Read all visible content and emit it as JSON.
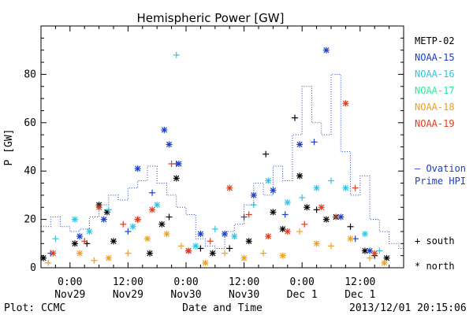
{
  "chart_data": {
    "type": "scatter",
    "title": "Hemispheric Power [GW]",
    "ylabel": "P [GW]",
    "xlabel": "Date and Time",
    "ylim": [
      0,
      100
    ],
    "xlim": [
      "2013-11-28 18:00",
      "2013-12-01 21:00"
    ],
    "y_ticks": [
      0,
      20,
      40,
      60,
      80
    ],
    "x_ticks": [
      {
        "at": "2013-11-29 00:00",
        "line1": "0:00",
        "line2": "Nov29"
      },
      {
        "at": "2013-11-29 12:00",
        "line1": "12:00",
        "line2": "Nov29"
      },
      {
        "at": "2013-11-30 00:00",
        "line1": "0:00",
        "line2": "Nov30"
      },
      {
        "at": "2013-11-30 12:00",
        "line1": "12:00",
        "line2": "Nov30"
      },
      {
        "at": "2013-12-01 00:00",
        "line1": "0:00",
        "line2": "Dec 1"
      },
      {
        "at": "2013-12-01 12:00",
        "line1": "12:00",
        "line2": "Dec 1"
      }
    ],
    "grid": false,
    "legend_position": "right",
    "footer_left": "Plot: CCMC",
    "footer_right": "2013/12/01 20:15:06",
    "marker_legend": [
      {
        "symbol": "+",
        "label": "south"
      },
      {
        "symbol": "*",
        "label": "north"
      }
    ],
    "series": [
      {
        "name": "METP-02",
        "color": "#000000",
        "points": [
          [
            "2013-11-28 18:30",
            4,
            "*"
          ],
          [
            "2013-11-29 01:00",
            10,
            "*"
          ],
          [
            "2013-11-29 03:30",
            10,
            "+"
          ],
          [
            "2013-11-29 06:00",
            26,
            "*"
          ],
          [
            "2013-11-29 07:40",
            23,
            "*"
          ],
          [
            "2013-11-29 09:00",
            11,
            "*"
          ],
          [
            "2013-11-29 14:00",
            20,
            "+"
          ],
          [
            "2013-11-29 16:30",
            6,
            "*"
          ],
          [
            "2013-11-29 19:00",
            18,
            "*"
          ],
          [
            "2013-11-29 20:30",
            21,
            "+"
          ],
          [
            "2013-11-29 22:00",
            37,
            "*"
          ],
          [
            "2013-11-30 00:30",
            7,
            "*"
          ],
          [
            "2013-11-30 03:00",
            8,
            "+"
          ],
          [
            "2013-11-30 05:30",
            6,
            "*"
          ],
          [
            "2013-11-30 09:00",
            8,
            "+"
          ],
          [
            "2013-11-30 13:00",
            11,
            "*"
          ],
          [
            "2013-11-30 16:30",
            47,
            "+"
          ],
          [
            "2013-11-30 18:00",
            23,
            "*"
          ],
          [
            "2013-11-30 20:00",
            16,
            "*"
          ],
          [
            "2013-11-30 22:30",
            62,
            "+"
          ],
          [
            "2013-11-30 23:30",
            38,
            "*"
          ],
          [
            "2013-12-01 01:00",
            25,
            "*"
          ],
          [
            "2013-12-01 03:00",
            24,
            "+"
          ],
          [
            "2013-12-01 05:00",
            20,
            "*"
          ],
          [
            "2013-12-01 07:00",
            21,
            "*"
          ],
          [
            "2013-12-01 10:00",
            17,
            "+"
          ],
          [
            "2013-12-01 13:00",
            7,
            "*"
          ],
          [
            "2013-12-01 15:00",
            5,
            "+"
          ],
          [
            "2013-12-01 17:30",
            4,
            "*"
          ]
        ]
      },
      {
        "name": "NOAA-15",
        "color": "#1c3ec8",
        "points": [
          [
            "2013-11-28 20:00",
            6,
            "+"
          ],
          [
            "2013-11-29 02:00",
            13,
            "*"
          ],
          [
            "2013-11-29 07:00",
            20,
            "*"
          ],
          [
            "2013-11-29 12:00",
            15,
            "+"
          ],
          [
            "2013-11-29 14:00",
            41,
            "*"
          ],
          [
            "2013-11-29 17:00",
            31,
            "+"
          ],
          [
            "2013-11-29 19:30",
            57,
            "*"
          ],
          [
            "2013-11-29 20:30",
            51,
            "*"
          ],
          [
            "2013-11-29 22:00",
            43,
            "+"
          ],
          [
            "2013-11-29 22:30",
            43,
            "*"
          ],
          [
            "2013-11-30 03:00",
            14,
            "*"
          ],
          [
            "2013-11-30 08:00",
            14,
            "*"
          ],
          [
            "2013-11-30 12:00",
            21,
            "+"
          ],
          [
            "2013-11-30 14:00",
            30,
            "*"
          ],
          [
            "2013-11-30 18:00",
            32,
            "*"
          ],
          [
            "2013-11-30 20:30",
            22,
            "+"
          ],
          [
            "2013-11-30 23:30",
            51,
            "*"
          ],
          [
            "2013-12-01 02:30",
            52,
            "+"
          ],
          [
            "2013-12-01 05:00",
            90,
            "*"
          ],
          [
            "2013-12-01 08:00",
            21,
            "*"
          ],
          [
            "2013-12-01 11:00",
            12,
            "+"
          ],
          [
            "2013-12-01 14:00",
            7,
            "*"
          ]
        ]
      },
      {
        "name": "NOAA-16",
        "color": "#2ec6e6",
        "points": [
          [
            "2013-11-28 21:00",
            12,
            "+"
          ],
          [
            "2013-11-29 01:00",
            20,
            "*"
          ],
          [
            "2013-11-29 04:00",
            15,
            "*"
          ],
          [
            "2013-11-29 08:00",
            24,
            "+"
          ],
          [
            "2013-11-29 13:00",
            17,
            "*"
          ],
          [
            "2013-11-29 18:00",
            26,
            "*"
          ],
          [
            "2013-11-29 22:00",
            88,
            "+"
          ],
          [
            "2013-11-30 02:00",
            9,
            "*"
          ],
          [
            "2013-11-30 06:00",
            16,
            "+"
          ],
          [
            "2013-11-30 10:00",
            13,
            "*"
          ],
          [
            "2013-11-30 14:00",
            26,
            "+"
          ],
          [
            "2013-11-30 17:00",
            36,
            "*"
          ],
          [
            "2013-11-30 21:00",
            27,
            "*"
          ],
          [
            "2013-12-01 00:00",
            29,
            "+"
          ],
          [
            "2013-12-01 03:00",
            33,
            "*"
          ],
          [
            "2013-12-01 06:00",
            36,
            "+"
          ],
          [
            "2013-12-01 09:00",
            33,
            "*"
          ],
          [
            "2013-12-01 13:00",
            14,
            "*"
          ],
          [
            "2013-12-01 16:00",
            7,
            "+"
          ]
        ]
      },
      {
        "name": "NOAA-17",
        "color": "#2fe89b",
        "points": []
      },
      {
        "name": "NOAA-18",
        "color": "#f0a020",
        "points": [
          [
            "2013-11-28 19:30",
            2,
            "+"
          ],
          [
            "2013-11-29 02:00",
            6,
            "*"
          ],
          [
            "2013-11-29 05:00",
            3,
            "+"
          ],
          [
            "2013-11-29 08:00",
            4,
            "*"
          ],
          [
            "2013-11-29 12:00",
            6,
            "+"
          ],
          [
            "2013-11-29 16:00",
            12,
            "*"
          ],
          [
            "2013-11-29 20:00",
            14,
            "*"
          ],
          [
            "2013-11-29 23:00",
            9,
            "+"
          ],
          [
            "2013-11-30 04:00",
            2,
            "*"
          ],
          [
            "2013-11-30 08:00",
            6,
            "+"
          ],
          [
            "2013-11-30 12:00",
            4,
            "*"
          ],
          [
            "2013-11-30 16:00",
            6,
            "+"
          ],
          [
            "2013-11-30 20:00",
            5,
            "*"
          ],
          [
            "2013-11-30 23:30",
            15,
            "+"
          ],
          [
            "2013-12-01 03:00",
            10,
            "*"
          ],
          [
            "2013-12-01 06:00",
            9,
            "+"
          ],
          [
            "2013-12-01 10:00",
            12,
            "*"
          ],
          [
            "2013-12-01 14:00",
            4,
            "+"
          ],
          [
            "2013-12-01 17:00",
            2,
            "*"
          ]
        ]
      },
      {
        "name": "NOAA-19",
        "color": "#e03c1e",
        "points": [
          [
            "2013-11-28 20:30",
            6,
            "*"
          ],
          [
            "2013-11-29 03:00",
            11,
            "+"
          ],
          [
            "2013-11-29 06:00",
            25,
            "*"
          ],
          [
            "2013-11-29 11:00",
            18,
            "+"
          ],
          [
            "2013-11-29 14:00",
            20,
            "*"
          ],
          [
            "2013-11-29 17:00",
            24,
            "*"
          ],
          [
            "2013-11-29 21:00",
            43,
            "+"
          ],
          [
            "2013-11-30 00:30",
            7,
            "*"
          ],
          [
            "2013-11-30 05:00",
            11,
            "+"
          ],
          [
            "2013-11-30 09:00",
            33,
            "*"
          ],
          [
            "2013-11-30 13:00",
            22,
            "+"
          ],
          [
            "2013-11-30 17:00",
            13,
            "*"
          ],
          [
            "2013-11-30 21:00",
            15,
            "*"
          ],
          [
            "2013-12-01 00:30",
            18,
            "+"
          ],
          [
            "2013-12-01 04:00",
            25,
            "*"
          ],
          [
            "2013-12-01 07:00",
            21,
            "+"
          ],
          [
            "2013-12-01 09:00",
            68,
            "*"
          ],
          [
            "2013-12-01 11:00",
            33,
            "+"
          ],
          [
            "2013-12-01 15:00",
            6,
            "*"
          ]
        ]
      },
      {
        "name": "— Ovation Prime HPI",
        "label_lines": [
          "— Ovation",
          "Prime HPI"
        ],
        "color": "#1c3ec8",
        "line_style": "dotted-step",
        "times": [
          "2013-11-28 18:00",
          "2013-11-28 20:00",
          "2013-11-28 22:00",
          "2013-11-29 00:00",
          "2013-11-29 02:00",
          "2013-11-29 04:00",
          "2013-11-29 06:00",
          "2013-11-29 08:00",
          "2013-11-29 10:00",
          "2013-11-29 12:00",
          "2013-11-29 14:00",
          "2013-11-29 16:00",
          "2013-11-29 18:00",
          "2013-11-29 20:00",
          "2013-11-29 22:00",
          "2013-11-30 00:00",
          "2013-11-30 02:00",
          "2013-11-30 04:00",
          "2013-11-30 06:00",
          "2013-11-30 08:00",
          "2013-11-30 10:00",
          "2013-11-30 12:00",
          "2013-11-30 14:00",
          "2013-11-30 16:00",
          "2013-11-30 18:00",
          "2013-11-30 20:00",
          "2013-11-30 22:00",
          "2013-12-01 00:00",
          "2013-12-01 02:00",
          "2013-12-01 04:00",
          "2013-12-01 06:00",
          "2013-12-01 08:00",
          "2013-12-01 10:00",
          "2013-12-01 12:00",
          "2013-12-01 14:00",
          "2013-12-01 16:00",
          "2013-12-01 18:00",
          "2013-12-01 20:00"
        ],
        "values": [
          17,
          21,
          17,
          15,
          16,
          21,
          26,
          30,
          28,
          33,
          36,
          42,
          35,
          30,
          25,
          22,
          12,
          9,
          8,
          15,
          18,
          26,
          35,
          30,
          42,
          36,
          55,
          75,
          60,
          55,
          80,
          48,
          30,
          38,
          20,
          15,
          10,
          8
        ]
      }
    ]
  }
}
